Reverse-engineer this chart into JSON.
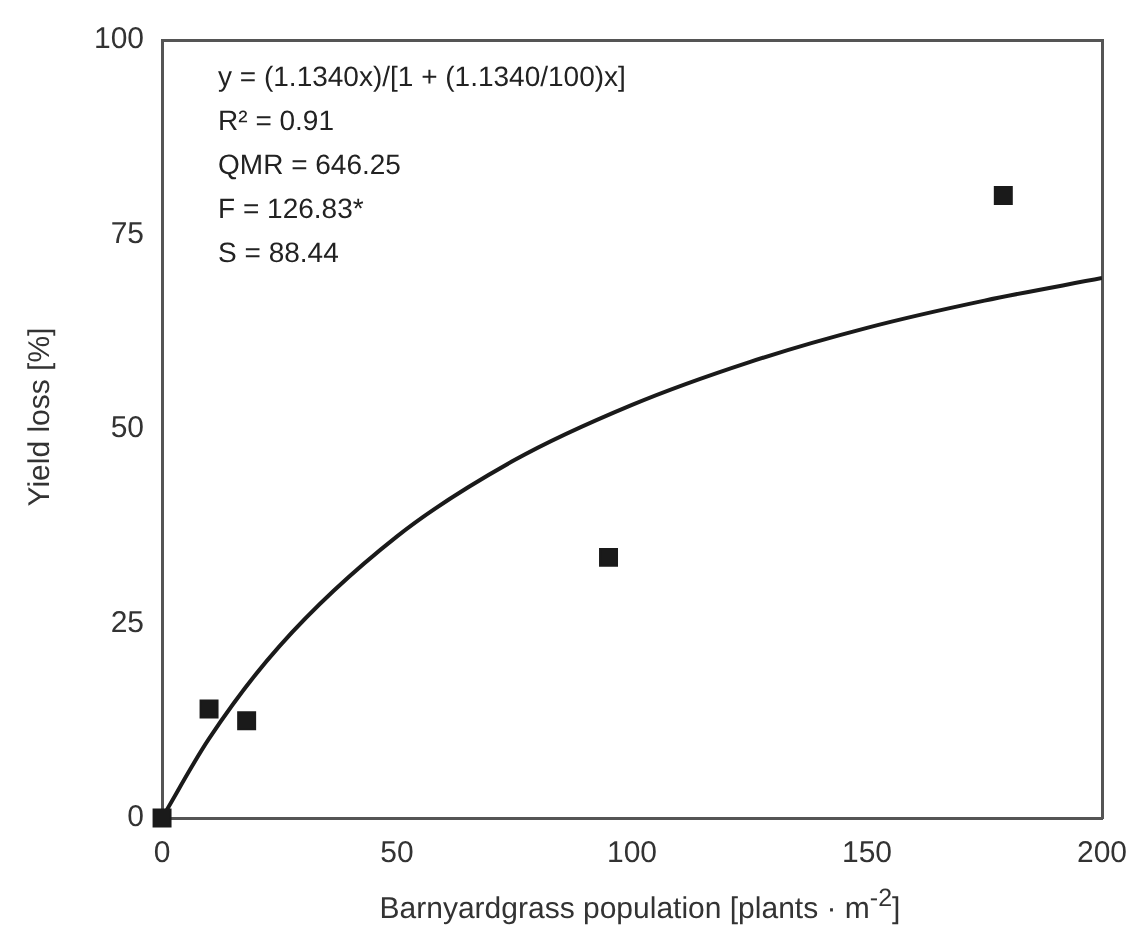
{
  "chart_data": {
    "type": "scatter",
    "xlabel": "Barnyardgrass population [plants · m$^{-2}$]",
    "ylabel": "Yield loss [%]",
    "xlim": [
      0,
      200
    ],
    "xticks": [
      0,
      50,
      100,
      150,
      200
    ],
    "ylim": [
      0,
      100
    ],
    "yticks": [
      0,
      25,
      50,
      75,
      100
    ],
    "grid": false,
    "legend": false,
    "series": [
      {
        "color": "#1a1a1a",
        "marker": "square",
        "x": [
          0,
          10,
          18,
          95,
          179
        ],
        "values": [
          0,
          14,
          12.5,
          33.5,
          80
        ]
      },
      {
        "type": "line",
        "marker": "none",
        "color": "#1a1a1a",
        "x": [
          0,
          10,
          25,
          50,
          75,
          100,
          125,
          150,
          175,
          200
        ],
        "values": [
          0,
          10.2,
          22.1,
          36.2,
          46,
          53.1,
          58.6,
          63,
          66.5,
          69.4
        ]
      }
    ],
    "annotations": [
      "y = (1.1340x)/[1 + (1.1340/100)x]",
      "R² = 0.91",
      "QMR = 646.25",
      "F = 126.83*",
      "S = 88.44"
    ]
  }
}
